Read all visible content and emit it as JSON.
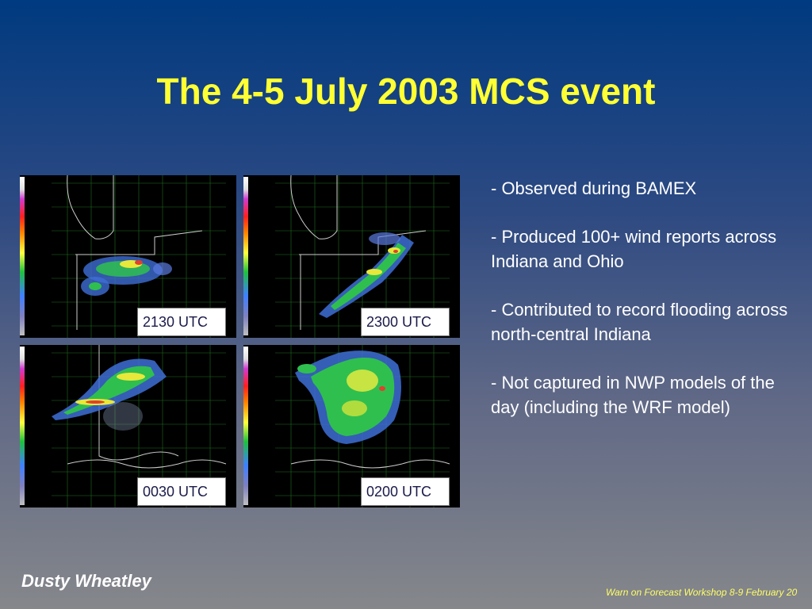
{
  "slide": {
    "title": "The 4-5 July 2003 MCS event",
    "panels": [
      {
        "label": "2130 UTC"
      },
      {
        "label": "2300 UTC"
      },
      {
        "label": "0030 UTC"
      },
      {
        "label": "0200 UTC"
      }
    ],
    "bullets": [
      "- Observed during BAMEX",
      "- Produced 100+ wind reports across Indiana and Ohio",
      "- Contributed to record flooding across north-central Indiana",
      "- Not captured in NWP models of the day (including the WRF model)"
    ],
    "author": "Dusty Wheatley",
    "footer": "Warn on Forecast Workshop 8-9 February 20",
    "colors": {
      "title": "#ffff33",
      "footer": "#ffff66"
    }
  }
}
